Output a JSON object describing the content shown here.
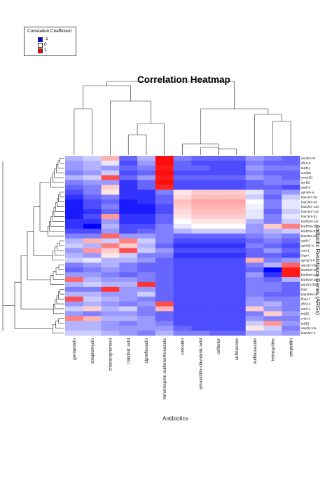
{
  "chart_data": {
    "type": "heatmap",
    "title": "Correlation Heatmap",
    "xlabel": "Antibiotics",
    "ylabel": "Antibiotic Resistance Genes (ARGs)",
    "legend": {
      "title": "Correlation Coefficient",
      "placement": "top-left",
      "entries": [
        {
          "label": "-1",
          "color": "#0000ff"
        },
        {
          "label": "0",
          "color": "#ffffff"
        },
        {
          "label": "1",
          "color": "#ff0000"
        }
      ]
    },
    "color_scale": {
      "low": "#0000ff",
      "mid": "#ffffff",
      "high": "#ff0000",
      "range": [
        -1,
        1
      ]
    },
    "columns": [
      "gentamicin",
      "streptomycin",
      "chloramphenicol",
      "nalidixic acid",
      "ciprofloxacin",
      "trimethoprim-sulfamethoxazole",
      "cefoxitin",
      "amoxicillin-clavulanic acid",
      "ceftiofur",
      "ceftriaxone",
      "sulfisoxazole",
      "tetracycline",
      "ampicillin"
    ],
    "rows": [
      "aac(6')-IIc",
      "dfrA19",
      "tet(M)",
      "mef(B)",
      "erm(42)",
      "qnrB2",
      "aadA3",
      "aph(4)-Ia",
      "blaCMY-59",
      "blaCMY-44",
      "blaCMY-133",
      "blaCMY-132",
      "blaCMY-51",
      "blaTEM-141",
      "blaTEM-2b",
      "blaTEM-217",
      "blaCMY-60",
      "aadA7",
      "aph(6)-Ic",
      "catA1",
      "OqxA",
      "aph(2'')-If",
      "aac(3)-VIa",
      "blaTEM-40",
      "blaTEM-220",
      "blaTEM-106",
      "aac(6')-Ib3",
      "bla0",
      "blaHERA-3",
      "floaA7",
      "dfrA14",
      "aadA2",
      "tet(D)",
      "cmlA1",
      "tet(B)",
      "aac(3)-VIa",
      "blaCMY-2"
    ],
    "values": [
      [
        -0.3,
        -0.2,
        0.3,
        -0.6,
        -0.3,
        0.95,
        -0.5,
        -0.6,
        -0.6,
        -0.6,
        -0.4,
        -0.5,
        -0.6
      ],
      [
        -0.4,
        -0.3,
        -0.1,
        -0.7,
        -0.4,
        0.95,
        -0.6,
        -0.7,
        -0.7,
        -0.7,
        -0.5,
        -0.6,
        -0.6
      ],
      [
        -0.4,
        -0.3,
        -0.4,
        -0.6,
        -0.5,
        0.9,
        -0.6,
        -0.6,
        -0.7,
        -0.7,
        -0.4,
        -0.5,
        -0.5
      ],
      [
        -0.5,
        -0.4,
        -0.2,
        -0.7,
        -0.6,
        0.95,
        -0.7,
        -0.7,
        -0.7,
        -0.7,
        -0.5,
        -0.6,
        -0.6
      ],
      [
        -0.3,
        -0.2,
        0.7,
        -0.6,
        -0.4,
        0.9,
        -0.6,
        -0.6,
        -0.6,
        -0.6,
        -0.4,
        -0.5,
        -0.6
      ],
      [
        -0.5,
        -0.4,
        -0.4,
        -0.8,
        -0.6,
        0.95,
        -0.7,
        -0.7,
        -0.7,
        -0.7,
        -0.6,
        -0.5,
        -0.5
      ],
      [
        -0.6,
        -0.5,
        0.2,
        -0.8,
        -0.6,
        0.85,
        -0.7,
        -0.7,
        -0.7,
        -0.7,
        -0.6,
        -0.6,
        -0.7
      ],
      [
        -0.7,
        -0.5,
        0.1,
        -0.8,
        -0.8,
        -0.5,
        0.1,
        0.2,
        0.2,
        0.2,
        -0.1,
        -0.5,
        -0.4
      ],
      [
        -0.8,
        -0.6,
        -0.5,
        -0.8,
        -0.8,
        -0.6,
        0.15,
        0.25,
        0.25,
        0.25,
        -0.2,
        -0.6,
        -0.2
      ],
      [
        -0.9,
        -0.7,
        -0.6,
        -0.9,
        -0.8,
        -0.6,
        0.25,
        0.35,
        0.35,
        0.35,
        0.0,
        -0.5,
        -0.1
      ],
      [
        -0.9,
        -0.7,
        -0.5,
        -0.9,
        -0.9,
        -0.7,
        0.2,
        0.3,
        0.3,
        0.3,
        -0.05,
        -0.5,
        -0.1
      ],
      [
        -0.9,
        -0.8,
        -0.6,
        -0.9,
        -0.9,
        -0.7,
        0.15,
        0.25,
        0.25,
        0.25,
        -0.1,
        -0.6,
        -0.2
      ],
      [
        -0.9,
        -0.7,
        0.4,
        -0.8,
        -0.8,
        -0.6,
        0.1,
        0.2,
        0.2,
        0.2,
        -0.1,
        -0.5,
        -0.1
      ],
      [
        -0.8,
        -0.8,
        -0.4,
        -0.8,
        -0.8,
        -0.6,
        0.0,
        0.1,
        0.1,
        0.1,
        -0.3,
        -0.5,
        -0.2
      ],
      [
        -0.8,
        -1.0,
        -0.3,
        -0.7,
        -0.7,
        -0.5,
        -0.1,
        0.0,
        0.0,
        0.0,
        -0.4,
        0.2,
        0.5
      ],
      [
        -0.7,
        -0.7,
        -0.4,
        -0.7,
        -0.6,
        -0.5,
        -0.3,
        -0.2,
        -0.2,
        -0.2,
        -0.4,
        -0.3,
        -0.2
      ],
      [
        -0.5,
        -0.5,
        0.6,
        -0.4,
        -0.4,
        -0.5,
        -0.6,
        -0.6,
        -0.6,
        -0.6,
        -0.5,
        -0.4,
        -0.5
      ],
      [
        -0.3,
        0.3,
        -0.2,
        0.5,
        -0.2,
        -0.5,
        -0.7,
        -0.7,
        -0.7,
        -0.7,
        -0.6,
        -0.5,
        -0.6
      ],
      [
        -0.2,
        -0.3,
        0.5,
        0.2,
        -0.3,
        -0.6,
        -0.8,
        -0.8,
        -0.8,
        -0.8,
        -0.5,
        -0.6,
        -0.7
      ],
      [
        -0.4,
        0.4,
        0.2,
        0.7,
        -0.2,
        -0.4,
        -0.7,
        -0.7,
        -0.7,
        -0.7,
        -0.6,
        -0.4,
        -0.6
      ],
      [
        -0.3,
        -0.4,
        0.1,
        -0.2,
        -0.5,
        -0.5,
        -0.8,
        -0.8,
        -0.8,
        -0.8,
        -0.6,
        -0.6,
        -0.7
      ],
      [
        -0.2,
        -0.1,
        -0.3,
        -0.3,
        -0.4,
        -0.6,
        -0.7,
        -0.7,
        -0.7,
        -0.7,
        0.3,
        -0.5,
        -0.4
      ],
      [
        -0.5,
        -0.4,
        -0.3,
        -0.5,
        -0.6,
        -0.6,
        -0.7,
        -0.7,
        -0.7,
        -0.7,
        -0.5,
        -0.3,
        0.6
      ],
      [
        -0.6,
        -0.5,
        -0.4,
        -0.5,
        -0.6,
        -0.6,
        -0.7,
        -0.7,
        -0.7,
        -0.7,
        -0.6,
        -1.0,
        0.9
      ],
      [
        -0.4,
        -0.4,
        -0.5,
        -0.6,
        -0.5,
        -0.6,
        -0.7,
        -0.7,
        -0.7,
        -0.7,
        -0.4,
        -0.8,
        0.9
      ],
      [
        0.6,
        -0.3,
        -0.4,
        -0.4,
        -0.5,
        -0.6,
        -0.7,
        -0.7,
        -0.7,
        -0.7,
        -0.5,
        -0.6,
        -0.3
      ],
      [
        -0.3,
        -0.2,
        -0.3,
        -0.3,
        0.8,
        -0.6,
        -0.7,
        -0.7,
        -0.7,
        -0.7,
        -0.5,
        -0.5,
        -0.6
      ],
      [
        -0.5,
        -0.5,
        0.8,
        -0.4,
        -0.4,
        -0.6,
        -0.7,
        -0.7,
        -0.7,
        -0.7,
        -0.5,
        -0.5,
        -0.6
      ],
      [
        -0.3,
        -0.3,
        -0.4,
        -0.4,
        -0.2,
        -0.6,
        -0.7,
        -0.7,
        -0.7,
        -0.7,
        -0.5,
        -0.6,
        -0.6
      ],
      [
        0.7,
        -0.2,
        -0.3,
        -0.4,
        -0.5,
        -0.6,
        -0.7,
        -0.7,
        -0.7,
        -0.7,
        -0.4,
        -0.5,
        -0.5
      ],
      [
        -0.4,
        -0.3,
        -0.4,
        -0.5,
        -0.4,
        0.7,
        -0.7,
        -0.7,
        -0.7,
        -0.7,
        -0.4,
        -0.3,
        -0.5
      ],
      [
        -0.2,
        0.2,
        -0.3,
        -0.2,
        -0.5,
        0.3,
        -0.7,
        -0.7,
        -0.7,
        -0.7,
        0.2,
        -0.4,
        -0.5
      ],
      [
        -0.4,
        -0.5,
        -0.4,
        -0.4,
        -0.5,
        -0.6,
        -0.7,
        -0.7,
        -0.7,
        -0.7,
        -0.5,
        0.2,
        -0.4
      ],
      [
        0.5,
        0.3,
        -0.3,
        -0.3,
        -0.4,
        -0.6,
        -0.7,
        -0.7,
        -0.7,
        -0.7,
        -0.4,
        -0.5,
        -0.5
      ],
      [
        -0.3,
        -0.3,
        -0.4,
        -0.5,
        -0.4,
        -0.5,
        -0.7,
        -0.7,
        -0.7,
        -0.7,
        -0.2,
        0.4,
        -0.4
      ],
      [
        -0.3,
        -0.3,
        -0.4,
        -0.4,
        -0.4,
        -0.4,
        -0.6,
        -0.7,
        -0.7,
        -0.7,
        0.1,
        -0.2,
        -0.5
      ],
      [
        -0.2,
        -0.2,
        -0.3,
        -0.4,
        -0.5,
        -0.3,
        -0.5,
        -0.5,
        -0.6,
        -0.6,
        -0.3,
        -0.3,
        -0.4
      ]
    ]
  }
}
